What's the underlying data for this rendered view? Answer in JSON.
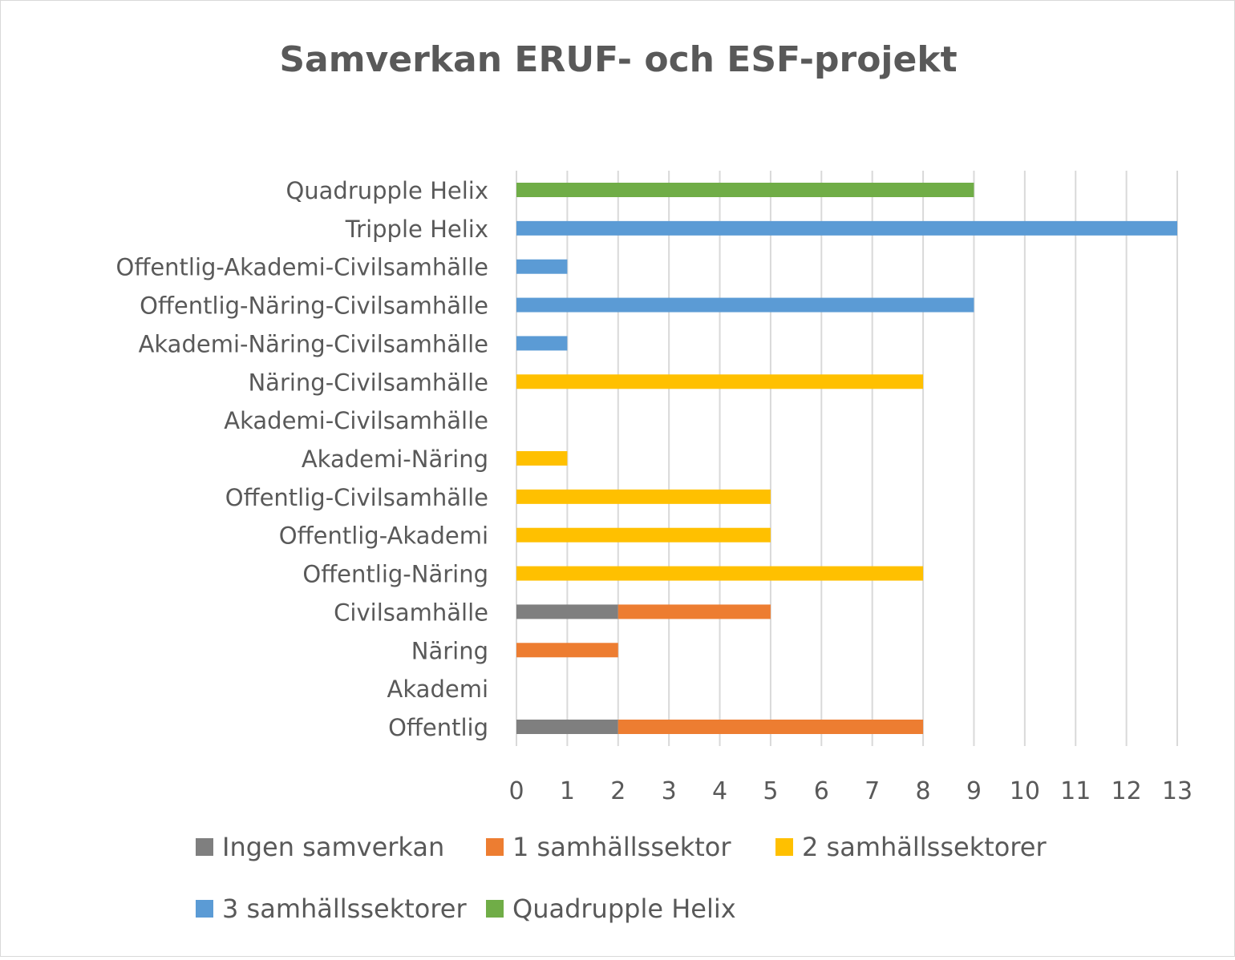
{
  "chart_data": {
    "type": "bar",
    "orientation": "horizontal",
    "stacked": true,
    "title": "Samverkan ERUF- och ESF-projekt",
    "xlabel": "",
    "ylabel": "",
    "xlim": [
      0,
      13
    ],
    "x_ticks": [
      "0",
      "1",
      "2",
      "3",
      "4",
      "5",
      "6",
      "7",
      "8",
      "9",
      "10",
      "11",
      "12",
      "13"
    ],
    "grid": true,
    "legend_position": "bottom",
    "categories": [
      "Offentlig",
      "Akademi",
      "Näring",
      "Civilsamhälle",
      "Offentlig-Näring",
      "Offentlig-Akademi",
      "Offentlig-Civilsamhälle",
      "Akademi-Näring",
      "Akademi-Civilsamhälle",
      "Näring-Civilsamhälle",
      "Akademi-Näring-Civilsamhälle",
      "Offentlig-Näring-Civilsamhälle",
      "Offentlig-Akademi-Civilsamhälle",
      "Tripple Helix",
      "Quadrupple Helix"
    ],
    "series": [
      {
        "name": "Ingen samverkan",
        "color": "#7F7F7F",
        "values": [
          2,
          0,
          0,
          2,
          0,
          0,
          0,
          0,
          0,
          0,
          0,
          0,
          0,
          0,
          0
        ]
      },
      {
        "name": "1 samhällssektor",
        "color": "#ED7D31",
        "values": [
          6,
          0,
          2,
          3,
          0,
          0,
          0,
          0,
          0,
          0,
          0,
          0,
          0,
          0,
          0
        ]
      },
      {
        "name": "2 samhällssektorer",
        "color": "#FFC000",
        "values": [
          0,
          0,
          0,
          0,
          8,
          5,
          5,
          1,
          0,
          8,
          0,
          0,
          0,
          0,
          0
        ]
      },
      {
        "name": "3 samhällssektorer",
        "color": "#5B9BD5",
        "values": [
          0,
          0,
          0,
          0,
          0,
          0,
          0,
          0,
          0,
          0,
          1,
          9,
          1,
          13,
          0
        ]
      },
      {
        "name": "Quadrupple Helix",
        "color": "#70AD47",
        "values": [
          0,
          0,
          0,
          0,
          0,
          0,
          0,
          0,
          0,
          0,
          0,
          0,
          0,
          0,
          9
        ]
      }
    ]
  }
}
